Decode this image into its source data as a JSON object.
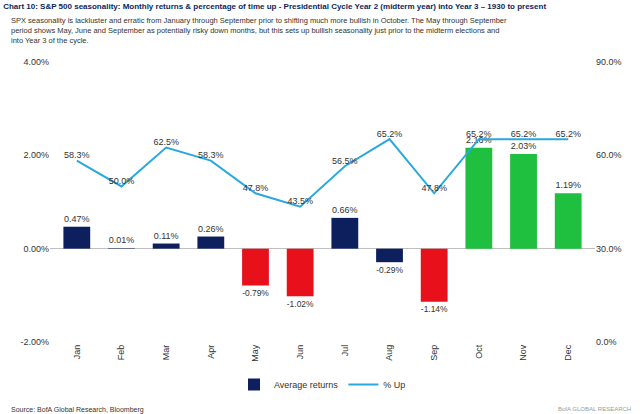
{
  "chart_data": {
    "type": "bar",
    "title": "Chart 10: S&P 500 seasonality: Monthly returns & percentage of time up - Presidential Cycle Year 2 (midterm year) into Year 3 – 1930 to present",
    "subtitle": "SPX seasonality is lackluster and erratic from January through September prior to shifting much more bullish in October. The May through September period shows May, June and September as potentially risky down months, but this sets up bullish seasonality just prior to the midterm elections and into Year 3 of the cycle.",
    "source": "Source: BofA Global Research, Bloomberg",
    "footer": "BofA GLOBAL RESEARCH",
    "categories": [
      "Jan",
      "Feb",
      "Mar",
      "Apr",
      "May",
      "Jun",
      "Jul",
      "Aug",
      "Sep",
      "Oct",
      "Nov",
      "Dec"
    ],
    "series": [
      {
        "name": "Average returns",
        "type": "bar",
        "axis": "y",
        "values": [
          0.47,
          0.01,
          0.11,
          0.26,
          -0.79,
          -1.02,
          0.66,
          -0.29,
          -1.14,
          2.16,
          2.03,
          1.19
        ],
        "value_labels": [
          "0.47%",
          "0.01%",
          "0.11%",
          "0.26%",
          "-0.79%",
          "-1.02%",
          "0.66%",
          "-0.29%",
          "-1.14%",
          "2.16%",
          "2.03%",
          "1.19%"
        ],
        "colors": [
          "#0d1f5c",
          "#0d1f5c",
          "#0d1f5c",
          "#0d1f5c",
          "#e8111b",
          "#e8111b",
          "#0d1f5c",
          "#0d1f5c",
          "#e8111b",
          "#1fbf3f",
          "#1fbf3f",
          "#1fbf3f"
        ]
      },
      {
        "name": "% Up",
        "type": "line",
        "axis": "y2",
        "color": "#29a8e0",
        "values": [
          58.3,
          50.0,
          62.5,
          58.3,
          47.8,
          43.5,
          56.5,
          65.2,
          47.8,
          65.2,
          65.2,
          65.2
        ],
        "value_labels": [
          "58.3%",
          "50.0%",
          "62.5%",
          "58.3%",
          "47.8%",
          "43.5%",
          "56.5%",
          "65.2%",
          "47.8%",
          "65.2%",
          "65.2%",
          "65.2%"
        ]
      }
    ],
    "ylim": [
      -2,
      4
    ],
    "yticks": [
      {
        "value": -2,
        "label": "-2.00%"
      },
      {
        "value": 0,
        "label": "0.00%"
      },
      {
        "value": 2,
        "label": "2.00%"
      },
      {
        "value": 4,
        "label": "4.00%"
      }
    ],
    "y2lim": [
      0,
      90
    ],
    "y2ticks": [
      {
        "value": 0,
        "label": "0.0%"
      },
      {
        "value": 30,
        "label": "30.0%"
      },
      {
        "value": 60,
        "label": "60.0%"
      },
      {
        "value": 90,
        "label": "90.0%"
      }
    ],
    "grid": false,
    "legend": "bottom",
    "data_labels": true
  }
}
